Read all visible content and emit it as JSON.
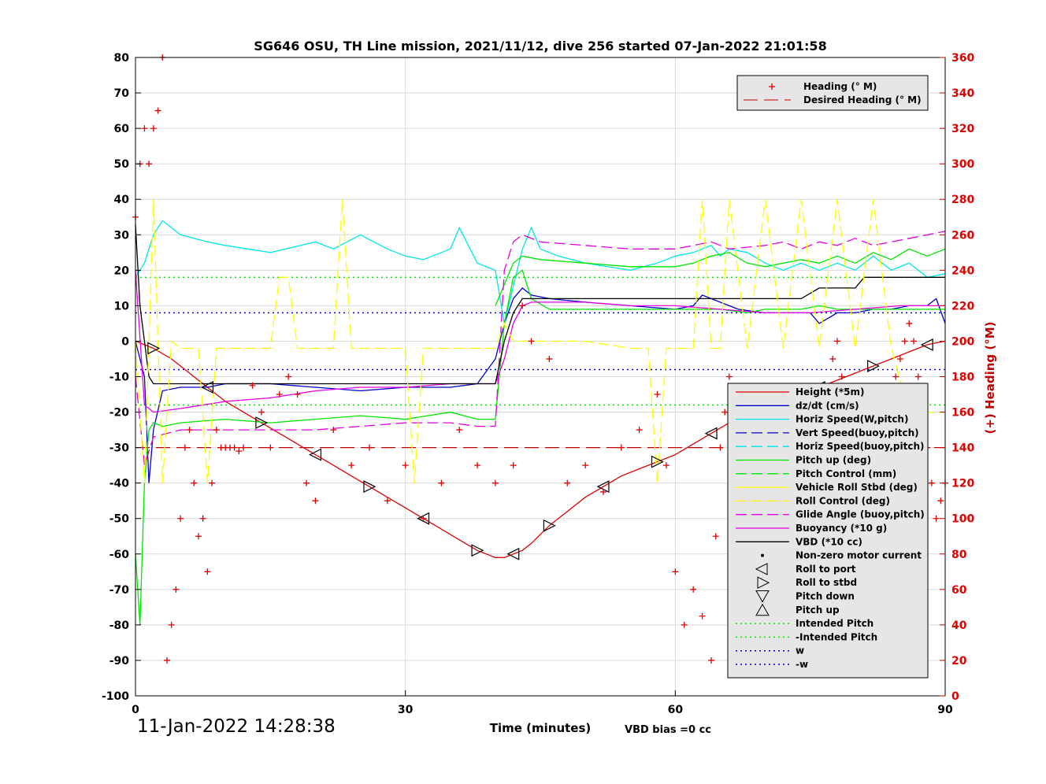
{
  "timestamp": "11-Jan-2022 14:28:38",
  "vbd_bias": "VBD bias =0 cc",
  "colors": {
    "red": "#e00000",
    "blue": "#0000c8",
    "cyan": "#00e6e6",
    "green": "#00e600",
    "yellow": "#ffff00",
    "magenta": "#e600e6",
    "black": "#000000",
    "dark_red": "#c00000"
  },
  "chart_data": {
    "type": "line",
    "title": "SG646 OSU, TH Line mission, 2021/11/12, dive 256 started 07-Jan-2022 21:01:58",
    "xlabel": "Time (minutes)",
    "ylabel_right": "(+) Heading (°M)",
    "xlim": [
      0,
      90
    ],
    "ylim_left": [
      -100,
      80
    ],
    "ylim_right": [
      0,
      360
    ],
    "x_ticks": [
      "0",
      "30",
      "60",
      "90"
    ],
    "y_left_ticks": [
      "80",
      "70",
      "60",
      "50",
      "40",
      "30",
      "20",
      "10",
      "0",
      "-10",
      "-20",
      "-30",
      "-40",
      "-50",
      "-60",
      "-70",
      "-80",
      "-90",
      "-100"
    ],
    "y_right_ticks": [
      "360",
      "340",
      "320",
      "300",
      "280",
      "260",
      "240",
      "220",
      "200",
      "180",
      "160",
      "140",
      "120",
      "100",
      "80",
      "60",
      "40",
      "20",
      "0"
    ],
    "grid": true,
    "heading_legend": {
      "placement": "top-right",
      "entries": [
        "Heading (° M)",
        "Desired Heading (° M)"
      ]
    },
    "main_legend": {
      "placement": "lower-right",
      "entries": [
        "Height (*5m)",
        "dz/dt (cm/s)",
        "Horiz Speed(W,pitch)",
        "Vert Speed(buoy,pitch)",
        "Horiz Speed(buoy,pitch)",
        "Pitch up (deg)",
        "Pitch Control (mm)",
        "Vehicle Roll Stbd (deg)",
        "Roll Control (deg)",
        "Glide Angle (buoy,pitch)",
        "Buoyancy (*10 g)",
        "VBD (*10 cc)",
        "Non-zero motor current",
        "Roll to port",
        "Roll to stbd",
        "Pitch down",
        "Pitch up",
        "Intended Pitch",
        "-Intended Pitch",
        "w",
        "-w"
      ]
    },
    "series": [
      {
        "name": "Height (*5m)",
        "axis": "left",
        "x": [
          0,
          2,
          4,
          6,
          8,
          10,
          12,
          14,
          16,
          18,
          20,
          22,
          24,
          26,
          28,
          30,
          32,
          34,
          36,
          38,
          40,
          41,
          42,
          43,
          44,
          46,
          48,
          50,
          52,
          54,
          56,
          58,
          60,
          62,
          64,
          66,
          68,
          70,
          72,
          74,
          76,
          78,
          80,
          82,
          84,
          86,
          88,
          90
        ],
        "y": [
          0,
          -2,
          -5,
          -9,
          -13,
          -17,
          -20,
          -23,
          -26,
          -29,
          -32,
          -35,
          -38,
          -41,
          -44,
          -47,
          -50,
          -53,
          -56,
          -59,
          -61,
          -61,
          -60,
          -59,
          -57,
          -52,
          -48,
          -44,
          -41,
          -38,
          -36,
          -34,
          -32,
          -29,
          -26,
          -23,
          -21,
          -19,
          -17,
          -15,
          -13,
          -11,
          -9,
          -7,
          -5,
          -3,
          -1,
          0
        ]
      },
      {
        "name": "dz/dt (cm/s)",
        "axis": "left",
        "x": [
          0,
          1,
          1.5,
          2,
          3,
          5,
          8,
          10,
          15,
          20,
          25,
          30,
          35,
          38,
          40,
          41,
          42,
          43,
          44,
          46,
          50,
          55,
          60,
          62,
          63,
          65,
          67,
          70,
          73,
          75,
          76,
          78,
          80,
          82,
          84,
          86,
          88,
          89,
          90
        ],
        "y": [
          0,
          -10,
          -40,
          -25,
          -14,
          -13,
          -13,
          -12,
          -12,
          -13,
          -14,
          -13,
          -13,
          -12,
          -5,
          5,
          12,
          15,
          13,
          12,
          11,
          10,
          9,
          10,
          13,
          11,
          9,
          8,
          8,
          8,
          5,
          8,
          8,
          9,
          9,
          10,
          10,
          12,
          5
        ]
      },
      {
        "name": "Horiz Speed(W,pitch)",
        "axis": "left",
        "x": [
          0,
          1,
          2,
          3,
          5,
          8,
          10,
          15,
          20,
          22,
          25,
          28,
          30,
          32,
          35,
          36,
          38,
          40,
          41,
          43,
          44,
          45,
          47,
          50,
          55,
          58,
          60,
          62,
          63,
          64,
          65,
          66,
          68,
          70,
          72,
          74,
          76,
          78,
          80,
          82,
          84,
          86,
          88,
          90
        ],
        "y": [
          18,
          22,
          30,
          34,
          30,
          28,
          27,
          25,
          28,
          26,
          30,
          26,
          24,
          23,
          26,
          32,
          22,
          20,
          5,
          26,
          32,
          26,
          24,
          22,
          20,
          22,
          24,
          25,
          26,
          27,
          24,
          26,
          25,
          22,
          20,
          22,
          20,
          22,
          20,
          24,
          20,
          22,
          18,
          19
        ]
      },
      {
        "name": "Pitch up (deg)",
        "axis": "left",
        "x": [
          0,
          0.5,
          1,
          1.5,
          2,
          3,
          5,
          10,
          15,
          20,
          25,
          30,
          35,
          38,
          40,
          41,
          42,
          43,
          44,
          46,
          50,
          55,
          60,
          62,
          63,
          65,
          68,
          70,
          72,
          74,
          76,
          78,
          80,
          82,
          84,
          86,
          88,
          90
        ],
        "y": [
          -60,
          -80,
          -40,
          -25,
          -23,
          -24,
          -23,
          -22,
          -23,
          -22,
          -21,
          -22,
          -20,
          -22,
          -22,
          5,
          18,
          20,
          12,
          9,
          9,
          9,
          9,
          9,
          9,
          9,
          8,
          9,
          9,
          9,
          10,
          9,
          9,
          9,
          9,
          9,
          9,
          9
        ]
      },
      {
        "name": "Pitch up green (upper)",
        "axis": "left",
        "x": [
          40,
          41,
          42,
          43,
          45,
          50,
          55,
          60,
          62,
          64,
          66,
          68,
          70,
          72,
          74,
          76,
          78,
          80,
          82,
          84,
          86,
          88,
          90
        ],
        "y": [
          10,
          16,
          22,
          24,
          23,
          22,
          21,
          21,
          22,
          24,
          25,
          22,
          21,
          22,
          23,
          22,
          24,
          22,
          25,
          23,
          26,
          24,
          26
        ]
      },
      {
        "name": "Glide Angle (buoy,pitch)",
        "axis": "left",
        "x": [
          0,
          1,
          2,
          5,
          10,
          15,
          20,
          25,
          30,
          35,
          38,
          40,
          41,
          42,
          43,
          45,
          50,
          55,
          60,
          62,
          64,
          66,
          70,
          72,
          74,
          76,
          78,
          80,
          82,
          84,
          86,
          88,
          90
        ],
        "y": [
          -10,
          -35,
          -27,
          -25,
          -25,
          -25,
          -25,
          -24,
          -23,
          -23,
          -24,
          -24,
          20,
          28,
          30,
          28,
          27,
          26,
          26,
          27,
          28,
          26,
          27,
          28,
          26,
          28,
          27,
          29,
          27,
          28,
          29,
          30,
          31
        ]
      },
      {
        "name": "Buoyancy (*10 g)",
        "axis": "left",
        "x": [
          0,
          1,
          2,
          5,
          10,
          15,
          20,
          25,
          30,
          35,
          38,
          40,
          41,
          42,
          43,
          44,
          50,
          55,
          60,
          65,
          70,
          75,
          80,
          85,
          90
        ],
        "y": [
          20,
          -18,
          -20,
          -19,
          -17,
          -16,
          -14,
          -13,
          -13,
          -12,
          -12,
          -12,
          -5,
          5,
          10,
          11,
          11,
          10,
          10,
          9,
          8,
          8,
          9,
          10,
          10
        ]
      },
      {
        "name": "VBD (*10 cc)",
        "axis": "left",
        "x": [
          0,
          0.5,
          1,
          1.5,
          2,
          5,
          10,
          20,
          30,
          38,
          40,
          41,
          42,
          43,
          44,
          60,
          62,
          74,
          76,
          77,
          80,
          81,
          83,
          84,
          90
        ],
        "y": [
          33,
          10,
          0,
          -10,
          -12,
          -12,
          -12,
          -12,
          -12,
          -12,
          -12,
          0,
          8,
          12,
          12,
          12,
          12,
          12,
          15,
          15,
          15,
          18,
          18,
          18,
          18
        ]
      },
      {
        "name": "Roll Control (deg)",
        "axis": "left",
        "x": [
          0,
          1,
          2,
          3,
          4,
          5,
          7,
          8,
          9,
          10,
          11,
          12,
          13,
          15,
          16,
          17,
          18,
          19,
          20,
          22,
          23,
          24,
          25,
          30,
          31,
          32,
          33,
          35,
          38,
          40,
          41,
          42,
          43,
          45,
          50,
          55,
          57,
          58,
          59,
          60,
          62,
          63,
          64,
          65,
          66,
          68,
          70,
          72,
          74,
          76,
          78,
          80,
          82,
          84,
          86,
          88,
          90
        ],
        "y": [
          0,
          -40,
          40,
          -40,
          0,
          -2,
          -2,
          -40,
          -2,
          -2,
          -2,
          -2,
          -2,
          -2,
          18,
          18,
          -2,
          -2,
          -2,
          -2,
          40,
          -2,
          -2,
          -2,
          -40,
          -2,
          -2,
          -2,
          -2,
          -2,
          5,
          0,
          0,
          0,
          0,
          -2,
          -2,
          -40,
          -2,
          -2,
          -2,
          40,
          -2,
          -2,
          40,
          -2,
          40,
          -2,
          40,
          -2,
          40,
          -2,
          40,
          -2,
          -20,
          -20,
          -20
        ]
      }
    ],
    "heading": {
      "name": "Heading (° M)",
      "axis": "right",
      "x": [
        0,
        0.5,
        1,
        1.5,
        2,
        2.5,
        3,
        3.5,
        4,
        4.5,
        5,
        5.5,
        6,
        6.5,
        7,
        7.5,
        8,
        8.5,
        9,
        9.5,
        10,
        10.5,
        11,
        11.5,
        12,
        13,
        14,
        15,
        16,
        17,
        18,
        19,
        20,
        22,
        24,
        26,
        28,
        30,
        32,
        34,
        36,
        38,
        40,
        42,
        43,
        44,
        46,
        48,
        50,
        52,
        54,
        56,
        58,
        59,
        60,
        61,
        62,
        63,
        64,
        64.5,
        65,
        65.5,
        66,
        66.5,
        67,
        67.5,
        68,
        68.5,
        69,
        69.5,
        70,
        70.5,
        71,
        71.5,
        72,
        72.5,
        73,
        73.5,
        74,
        74.5,
        75,
        75.5,
        76,
        76.5,
        77,
        77.5,
        78,
        78.5,
        79,
        79.5,
        80,
        80.5,
        81,
        81.5,
        82,
        82.5,
        83,
        83.5,
        84,
        84.5,
        85,
        85.5,
        86,
        86.5,
        87,
        87.5,
        88,
        88.5,
        89,
        89.5,
        90
      ],
      "y": [
        270,
        300,
        320,
        300,
        320,
        330,
        360,
        20,
        40,
        60,
        100,
        140,
        150,
        120,
        90,
        100,
        70,
        120,
        150,
        140,
        140,
        140,
        140,
        138,
        140,
        175,
        160,
        140,
        170,
        180,
        170,
        120,
        110,
        150,
        130,
        140,
        110,
        130,
        100,
        120,
        150,
        130,
        120,
        130,
        220,
        200,
        190,
        120,
        130,
        115,
        140,
        150,
        170,
        130,
        70,
        40,
        60,
        45,
        20,
        90,
        140,
        160,
        180,
        160,
        140,
        120,
        100,
        80,
        60,
        50,
        60,
        80,
        100,
        120,
        140,
        130,
        110,
        90,
        70,
        60,
        80,
        100,
        120,
        150,
        170,
        190,
        200,
        180,
        160,
        140,
        120,
        100,
        80,
        70,
        90,
        110,
        130,
        150,
        170,
        180,
        190,
        200,
        210,
        200,
        180,
        160,
        140,
        120,
        100,
        110,
        120
      ]
    },
    "desired_heading": {
      "name": "Desired Heading (° M)",
      "value": 140
    },
    "intended_pitch": 18,
    "w_d": 8
  }
}
